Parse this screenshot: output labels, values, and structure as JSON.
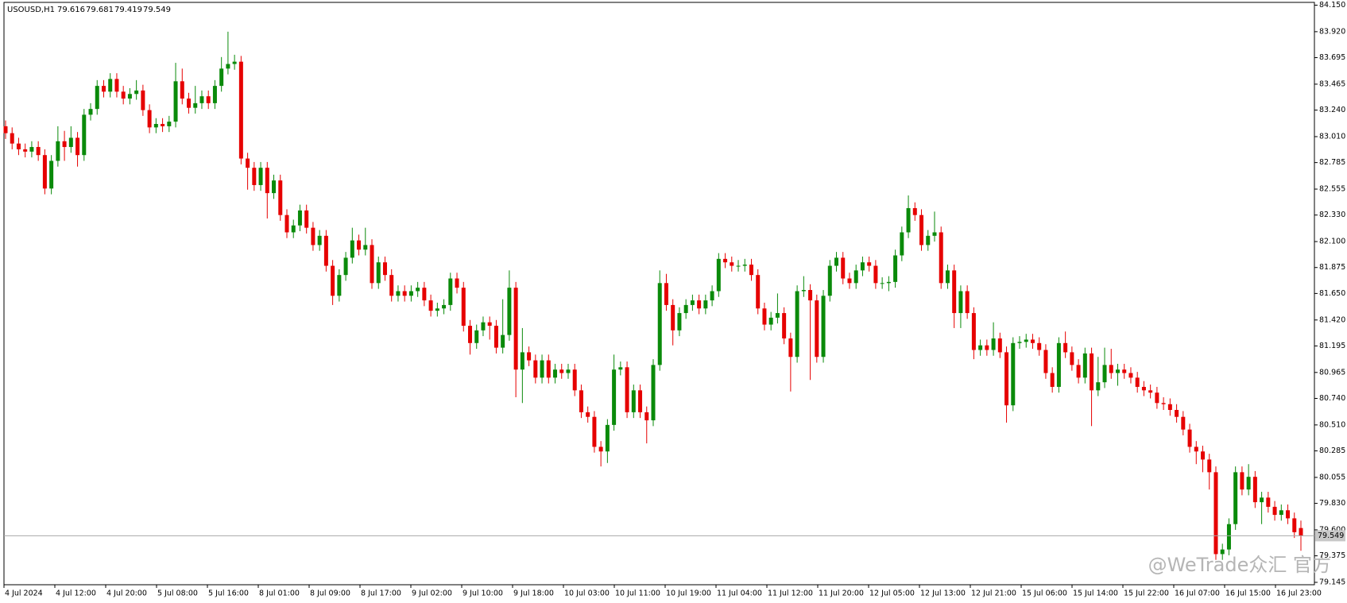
{
  "chart_data": {
    "type": "candlestick",
    "title": "USOUSD,H1",
    "watermark": "@WeTrade众汇 官方",
    "bull_color": "#0a8a0a",
    "bear_color": "#e60000",
    "price_line_color": "#a8a8a8",
    "ylim": [
      79.145,
      84.15
    ],
    "yticks": [
      {
        "value": 84.15,
        "label": "84.150"
      },
      {
        "value": 83.92,
        "label": "83.920"
      },
      83.695,
      83.465,
      {
        "value": 83.24,
        "label": "83.240"
      },
      {
        "value": 83.01,
        "label": "83.010"
      },
      82.785,
      82.555,
      {
        "value": 82.33,
        "label": "82.330"
      },
      {
        "value": 82.1,
        "label": "82.100"
      },
      81.875,
      {
        "value": 81.65,
        "label": "81.650"
      },
      {
        "value": 81.42,
        "label": "81.420"
      },
      81.195,
      80.965,
      {
        "value": 80.74,
        "label": "80.740"
      },
      {
        "value": 80.51,
        "label": "80.510"
      },
      80.285,
      80.055,
      {
        "value": 79.83,
        "label": "79.830"
      },
      {
        "value": 79.6,
        "label": "79.600"
      },
      79.375,
      79.145
    ],
    "xlabels": [
      "4 Jul 2024",
      "4 Jul 12:00",
      "4 Jul 20:00",
      "5 Jul 08:00",
      "5 Jul 16:00",
      "8 Jul 01:00",
      "8 Jul 09:00",
      "8 Jul 17:00",
      "9 Jul 02:00",
      "9 Jul 10:00",
      "9 Jul 18:00",
      "10 Jul 03:00",
      "10 Jul 11:00",
      "10 Jul 19:00",
      "11 Jul 04:00",
      "11 Jul 12:00",
      "11 Jul 20:00",
      "12 Jul 05:00",
      "12 Jul 13:00",
      "12 Jul 21:00",
      "15 Jul 06:00",
      "15 Jul 14:00",
      "15 Jul 22:00",
      "16 Jul 07:00",
      "16 Jul 15:00",
      "16 Jul 23:00"
    ],
    "open": [
      83.1,
      83.04,
      82.95,
      82.9,
      82.88,
      82.92,
      82.85,
      82.56,
      82.8,
      82.97,
      82.92,
      83.0,
      82.85,
      83.2,
      83.25,
      83.45,
      83.4,
      83.51,
      83.4,
      83.34,
      83.38,
      83.41,
      83.24,
      83.09,
      83.12,
      83.1,
      83.14,
      83.49,
      83.34,
      83.26,
      83.3,
      83.36,
      83.3,
      83.45,
      83.6,
      83.64,
      83.66,
      82.82,
      82.74,
      82.59,
      82.74,
      82.52,
      82.63,
      82.33,
      82.18,
      82.24,
      82.37,
      82.22,
      82.07,
      82.15,
      81.89,
      81.63,
      81.81,
      81.96,
      82.11,
      82.03,
      82.07,
      81.74,
      81.92,
      81.81,
      81.63,
      81.67,
      81.63,
      81.67,
      81.7,
      81.59,
      81.5,
      81.52,
      81.55,
      81.78,
      81.7,
      81.37,
      81.22,
      81.33,
      81.4,
      81.37,
      81.18,
      81.29,
      81.7,
      80.99,
      81.14,
      81.07,
      80.92,
      81.07,
      80.92,
      80.99,
      80.96,
      80.99,
      80.81,
      80.62,
      80.58,
      80.32,
      80.28,
      80.51,
      80.99,
      81.01,
      80.62,
      80.81,
      80.62,
      80.55,
      81.03,
      81.74,
      81.55,
      81.33,
      81.48,
      81.55,
      81.59,
      81.52,
      81.59,
      81.67,
      81.95,
      81.92,
      81.89,
      81.89,
      81.9,
      81.81,
      81.52,
      81.38,
      81.44,
      81.48,
      81.26,
      81.1,
      81.67,
      81.68,
      81.59,
      81.1,
      81.63,
      81.89,
      81.96,
      81.78,
      81.74,
      81.85,
      81.92,
      81.89,
      81.74,
      81.74,
      81.75,
      81.98,
      82.18,
      82.39,
      82.33,
      82.07,
      82.15,
      82.18,
      81.74,
      81.85,
      81.48,
      81.67,
      81.48,
      81.16,
      81.2,
      81.16,
      81.26,
      81.14,
      80.68,
      81.22,
      81.23,
      81.25,
      81.22,
      81.16,
      80.96,
      80.84,
      81.22,
      81.14,
      81.03,
      80.92,
      81.13,
      80.81,
      80.88,
      81.03,
      80.96,
      80.99,
      80.96,
      80.92,
      80.84,
      80.81,
      80.79,
      80.7,
      80.69,
      80.64,
      80.58,
      80.47,
      80.32,
      80.28,
      80.21,
      80.1,
      79.39,
      79.43,
      79.65,
      80.1,
      79.95,
      80.06,
      79.84,
      79.88,
      79.8,
      79.73,
      79.77,
      79.7,
      79.616
    ],
    "high": [
      83.15,
      83.09,
      83.0,
      82.95,
      82.97,
      82.97,
      82.9,
      82.85,
      83.1,
      83.06,
      83.1,
      83.05,
      83.25,
      83.3,
      83.5,
      83.5,
      83.56,
      83.56,
      83.45,
      83.43,
      83.5,
      83.46,
      83.29,
      83.17,
      83.17,
      83.19,
      83.65,
      83.6,
      83.39,
      83.45,
      83.41,
      83.41,
      83.5,
      83.7,
      83.92,
      83.72,
      83.71,
      82.87,
      82.79,
      82.79,
      82.79,
      82.68,
      82.68,
      82.38,
      82.29,
      82.42,
      82.42,
      82.27,
      82.2,
      82.2,
      81.94,
      81.86,
      82.01,
      82.22,
      82.16,
      82.22,
      82.12,
      81.97,
      81.97,
      81.86,
      81.72,
      81.72,
      81.72,
      81.75,
      81.75,
      81.64,
      81.57,
      81.6,
      81.83,
      81.83,
      81.75,
      81.42,
      81.38,
      81.45,
      81.45,
      81.42,
      81.6,
      81.85,
      81.75,
      81.35,
      81.19,
      81.12,
      81.12,
      81.12,
      81.04,
      81.04,
      81.04,
      81.04,
      80.86,
      80.67,
      80.63,
      80.37,
      80.56,
      81.12,
      81.06,
      81.06,
      80.86,
      80.86,
      80.67,
      81.08,
      81.85,
      81.82,
      81.6,
      81.53,
      81.6,
      81.64,
      81.64,
      81.64,
      81.72,
      82.0,
      82.0,
      81.97,
      81.94,
      81.95,
      81.95,
      81.86,
      81.57,
      81.49,
      81.65,
      81.53,
      81.31,
      81.72,
      81.8,
      81.73,
      81.64,
      81.68,
      81.94,
      82.01,
      82.01,
      81.83,
      81.9,
      81.97,
      81.97,
      81.94,
      81.79,
      81.8,
      82.03,
      82.23,
      82.5,
      82.44,
      82.38,
      82.2,
      82.36,
      82.23,
      81.9,
      81.9,
      81.72,
      81.72,
      81.53,
      81.25,
      81.25,
      81.4,
      81.31,
      81.19,
      81.27,
      81.28,
      81.3,
      81.3,
      81.27,
      81.21,
      81.01,
      81.27,
      81.32,
      81.19,
      81.08,
      81.18,
      81.18,
      81.1,
      81.18,
      81.17,
      81.04,
      81.04,
      81.01,
      80.97,
      80.89,
      80.86,
      80.84,
      80.75,
      80.74,
      80.69,
      80.63,
      80.52,
      80.37,
      80.33,
      80.26,
      80.15,
      79.48,
      79.7,
      80.15,
      80.15,
      80.17,
      80.11,
      79.93,
      79.93,
      79.85,
      79.82,
      79.82,
      79.75,
      79.681
    ],
    "low": [
      82.99,
      82.9,
      82.85,
      82.83,
      82.83,
      82.8,
      82.51,
      82.51,
      82.75,
      82.8,
      82.87,
      82.75,
      82.8,
      83.15,
      83.2,
      83.35,
      83.35,
      83.35,
      83.29,
      83.29,
      83.33,
      83.19,
      83.04,
      83.04,
      83.05,
      83.05,
      83.09,
      83.29,
      83.21,
      83.21,
      83.25,
      83.25,
      83.25,
      83.4,
      83.55,
      83.59,
      82.77,
      82.55,
      82.54,
      82.54,
      82.3,
      82.47,
      82.28,
      82.13,
      82.13,
      82.19,
      82.17,
      82.02,
      82.02,
      81.84,
      81.55,
      81.58,
      81.76,
      81.91,
      81.98,
      81.98,
      81.69,
      81.69,
      81.76,
      81.58,
      81.58,
      81.58,
      81.58,
      81.62,
      81.54,
      81.45,
      81.45,
      81.47,
      81.5,
      81.65,
      81.32,
      81.12,
      81.17,
      81.28,
      81.25,
      81.13,
      81.13,
      81.24,
      80.75,
      80.7,
      81.02,
      80.87,
      80.87,
      80.87,
      80.87,
      80.91,
      80.91,
      80.76,
      80.57,
      80.53,
      80.27,
      80.15,
      80.18,
      80.46,
      80.94,
      80.57,
      80.57,
      80.57,
      80.35,
      80.5,
      80.98,
      81.5,
      81.2,
      81.28,
      81.43,
      81.5,
      81.47,
      81.47,
      81.54,
      81.62,
      81.87,
      81.84,
      81.84,
      81.84,
      81.76,
      81.47,
      81.33,
      81.33,
      81.39,
      81.21,
      80.8,
      81.05,
      81.62,
      80.9,
      81.05,
      81.05,
      81.58,
      81.84,
      81.73,
      81.69,
      81.69,
      81.8,
      81.84,
      81.69,
      81.69,
      81.67,
      81.7,
      81.93,
      82.13,
      82.28,
      82.02,
      82.02,
      82.1,
      81.69,
      81.69,
      81.35,
      81.35,
      81.43,
      81.08,
      81.11,
      81.11,
      81.11,
      81.09,
      80.53,
      80.63,
      81.17,
      81.18,
      81.17,
      81.11,
      80.91,
      80.79,
      80.79,
      81.09,
      80.98,
      80.87,
      80.87,
      80.5,
      80.76,
      80.83,
      80.91,
      80.85,
      80.91,
      80.87,
      80.79,
      80.76,
      80.74,
      80.65,
      80.64,
      80.59,
      80.53,
      80.42,
      80.27,
      80.17,
      80.1,
      79.95,
      79.34,
      79.34,
      79.38,
      79.6,
      79.9,
      79.9,
      79.79,
      79.65,
      79.75,
      79.68,
      79.68,
      79.65,
      79.53,
      79.419
    ],
    "close": [
      83.04,
      82.95,
      82.9,
      82.88,
      82.92,
      82.85,
      82.56,
      82.8,
      82.97,
      82.92,
      83.0,
      82.85,
      83.2,
      83.25,
      83.45,
      83.4,
      83.51,
      83.4,
      83.34,
      83.38,
      83.41,
      83.24,
      83.09,
      83.12,
      83.1,
      83.14,
      83.49,
      83.34,
      83.26,
      83.3,
      83.36,
      83.3,
      83.45,
      83.6,
      83.64,
      83.66,
      82.82,
      82.74,
      82.59,
      82.74,
      82.52,
      82.63,
      82.33,
      82.18,
      82.24,
      82.37,
      82.22,
      82.07,
      82.15,
      81.89,
      81.63,
      81.81,
      81.96,
      82.11,
      82.03,
      82.07,
      81.74,
      81.92,
      81.81,
      81.63,
      81.67,
      81.63,
      81.67,
      81.7,
      81.59,
      81.5,
      81.52,
      81.55,
      81.78,
      81.7,
      81.37,
      81.22,
      81.33,
      81.4,
      81.37,
      81.18,
      81.29,
      81.7,
      80.99,
      81.14,
      81.07,
      80.92,
      81.07,
      80.92,
      80.99,
      80.96,
      80.99,
      80.81,
      80.62,
      80.58,
      80.32,
      80.28,
      80.51,
      80.99,
      81.01,
      80.62,
      80.81,
      80.62,
      80.55,
      81.03,
      81.74,
      81.55,
      81.33,
      81.48,
      81.55,
      81.59,
      81.52,
      81.59,
      81.67,
      81.95,
      81.92,
      81.89,
      81.89,
      81.9,
      81.81,
      81.52,
      81.38,
      81.44,
      81.48,
      81.26,
      81.1,
      81.67,
      81.68,
      81.59,
      81.1,
      81.63,
      81.89,
      81.96,
      81.78,
      81.74,
      81.85,
      81.92,
      81.89,
      81.74,
      81.74,
      81.75,
      81.98,
      82.18,
      82.39,
      82.33,
      82.07,
      82.15,
      82.18,
      81.74,
      81.85,
      81.48,
      81.67,
      81.48,
      81.16,
      81.2,
      81.16,
      81.26,
      81.14,
      80.68,
      81.22,
      81.23,
      81.25,
      81.22,
      81.16,
      80.96,
      80.84,
      81.22,
      81.14,
      81.03,
      80.92,
      81.13,
      80.81,
      80.88,
      81.03,
      80.96,
      80.99,
      80.96,
      80.92,
      80.84,
      80.81,
      80.79,
      80.7,
      80.69,
      80.64,
      80.58,
      80.47,
      80.32,
      80.28,
      80.21,
      80.1,
      79.39,
      79.43,
      79.65,
      80.1,
      79.95,
      80.06,
      79.84,
      79.88,
      79.8,
      79.73,
      79.77,
      79.7,
      79.58,
      79.549
    ]
  }
}
